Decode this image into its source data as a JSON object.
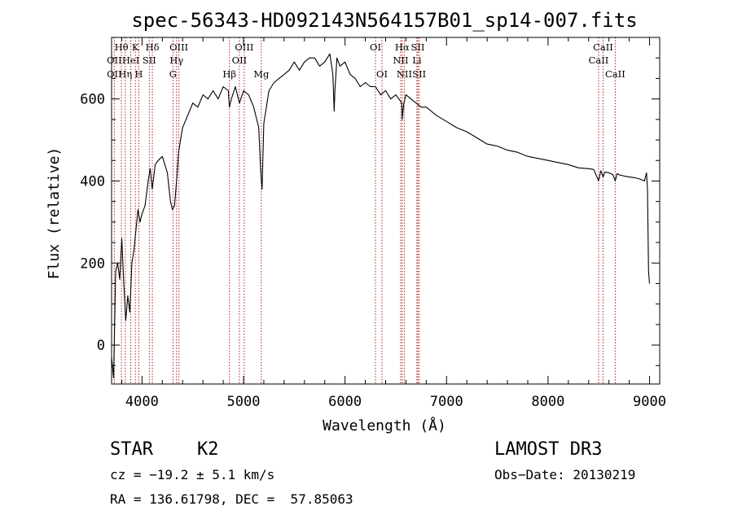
{
  "chart_data": {
    "type": "line",
    "title": "spec-56343-HD092143N564157B01_sp14-007.fits",
    "xlabel": "Wavelength (Å)",
    "ylabel": "Flux (relative)",
    "xlim": [
      3700,
      9100
    ],
    "ylim": [
      -95,
      750
    ],
    "xticks": [
      4000,
      5000,
      6000,
      7000,
      8000,
      9000
    ],
    "yticks": [
      0,
      200,
      400,
      600
    ],
    "series": [
      {
        "name": "spectrum",
        "x": [
          3700,
          3720,
          3740,
          3760,
          3780,
          3800,
          3820,
          3840,
          3860,
          3880,
          3900,
          3920,
          3940,
          3960,
          3980,
          4000,
          4030,
          4060,
          4080,
          4100,
          4130,
          4160,
          4200,
          4250,
          4280,
          4300,
          4320,
          4340,
          4360,
          4380,
          4400,
          4450,
          4500,
          4550,
          4600,
          4650,
          4700,
          4750,
          4800,
          4850,
          4861,
          4880,
          4920,
          4960,
          5000,
          5050,
          5100,
          5150,
          5170,
          5183,
          5200,
          5250,
          5300,
          5350,
          5400,
          5450,
          5500,
          5550,
          5600,
          5650,
          5700,
          5750,
          5800,
          5850,
          5880,
          5893,
          5900,
          5920,
          5950,
          6000,
          6050,
          6100,
          6150,
          6200,
          6250,
          6300,
          6350,
          6400,
          6450,
          6500,
          6530,
          6560,
          6563,
          6580,
          6600,
          6650,
          6700,
          6750,
          6800,
          6900,
          7000,
          7100,
          7200,
          7300,
          7400,
          7500,
          7600,
          7700,
          7800,
          7900,
          8000,
          8100,
          8200,
          8300,
          8400,
          8450,
          8498,
          8520,
          8542,
          8560,
          8600,
          8640,
          8662,
          8680,
          8700,
          8750,
          8800,
          8850,
          8900,
          8950,
          8970,
          8980,
          8990,
          9000
        ],
        "values": [
          -30,
          -80,
          180,
          200,
          160,
          260,
          150,
          60,
          120,
          80,
          200,
          230,
          280,
          330,
          300,
          320,
          340,
          400,
          430,
          380,
          440,
          450,
          460,
          420,
          350,
          330,
          340,
          400,
          470,
          500,
          530,
          560,
          590,
          580,
          610,
          600,
          620,
          600,
          630,
          620,
          580,
          600,
          630,
          590,
          620,
          610,
          580,
          530,
          420,
          380,
          540,
          620,
          640,
          650,
          660,
          670,
          690,
          670,
          690,
          700,
          700,
          680,
          690,
          710,
          660,
          570,
          620,
          700,
          680,
          690,
          660,
          650,
          630,
          640,
          630,
          630,
          610,
          620,
          600,
          610,
          600,
          590,
          550,
          590,
          610,
          600,
          590,
          580,
          580,
          560,
          545,
          530,
          520,
          505,
          490,
          485,
          475,
          470,
          460,
          455,
          450,
          445,
          440,
          432,
          430,
          428,
          400,
          425,
          410,
          422,
          420,
          415,
          400,
          418,
          415,
          412,
          410,
          408,
          405,
          400,
          420,
          380,
          180,
          150
        ]
      }
    ],
    "line_labels": [
      {
        "label": "Hθ",
        "wavelength": 3797,
        "row": 1
      },
      {
        "label": "OII",
        "wavelength": 3727,
        "row": 2
      },
      {
        "label": "OII",
        "wavelength": 3727,
        "row": 3
      },
      {
        "label": "Hη",
        "wavelength": 3835,
        "row": 3
      },
      {
        "label": "K",
        "wavelength": 3934,
        "row": 1
      },
      {
        "label": "HeI",
        "wavelength": 3889,
        "row": 2
      },
      {
        "label": "H",
        "wavelength": 3968,
        "row": 3
      },
      {
        "label": "Hδ",
        "wavelength": 4102,
        "row": 1
      },
      {
        "label": "SII",
        "wavelength": 4072,
        "row": 2
      },
      {
        "label": "OIII",
        "wavelength": 4363,
        "row": 1
      },
      {
        "label": "Hγ",
        "wavelength": 4340,
        "row": 2
      },
      {
        "label": "G",
        "wavelength": 4305,
        "row": 3
      },
      {
        "label": "OIII",
        "wavelength": 5007,
        "row": 1
      },
      {
        "label": "OII",
        "wavelength": 4959,
        "row": 2
      },
      {
        "label": "Hβ",
        "wavelength": 4861,
        "row": 3
      },
      {
        "label": "Mg",
        "wavelength": 5175,
        "row": 3
      },
      {
        "label": "OI",
        "wavelength": 6300,
        "row": 1
      },
      {
        "label": "OI",
        "wavelength": 6364,
        "row": 3
      },
      {
        "label": "Hα",
        "wavelength": 6563,
        "row": 1
      },
      {
        "label": "SII",
        "wavelength": 6717,
        "row": 1
      },
      {
        "label": "NII",
        "wavelength": 6548,
        "row": 2
      },
      {
        "label": "Li",
        "wavelength": 6708,
        "row": 2
      },
      {
        "label": "NII",
        "wavelength": 6584,
        "row": 3
      },
      {
        "label": "SII",
        "wavelength": 6731,
        "row": 3
      },
      {
        "label": "CaII",
        "wavelength": 8542,
        "row": 1
      },
      {
        "label": "CaII",
        "wavelength": 8498,
        "row": 2
      },
      {
        "label": "CaII",
        "wavelength": 8662,
        "row": 3
      }
    ],
    "grid": false,
    "legend": "none"
  },
  "info": {
    "object_type": "STAR",
    "subclass": "K2",
    "survey": "LAMOST DR3",
    "cz": "cz = −19.2 ± 5.1 km/s",
    "obs_date": "Obs−Date: 20130219",
    "coords": "RA = 136.61798, DEC =  57.85063"
  },
  "colors": {
    "line_markers": "#b22222",
    "spectrum": "#000000",
    "axes": "#000000"
  }
}
